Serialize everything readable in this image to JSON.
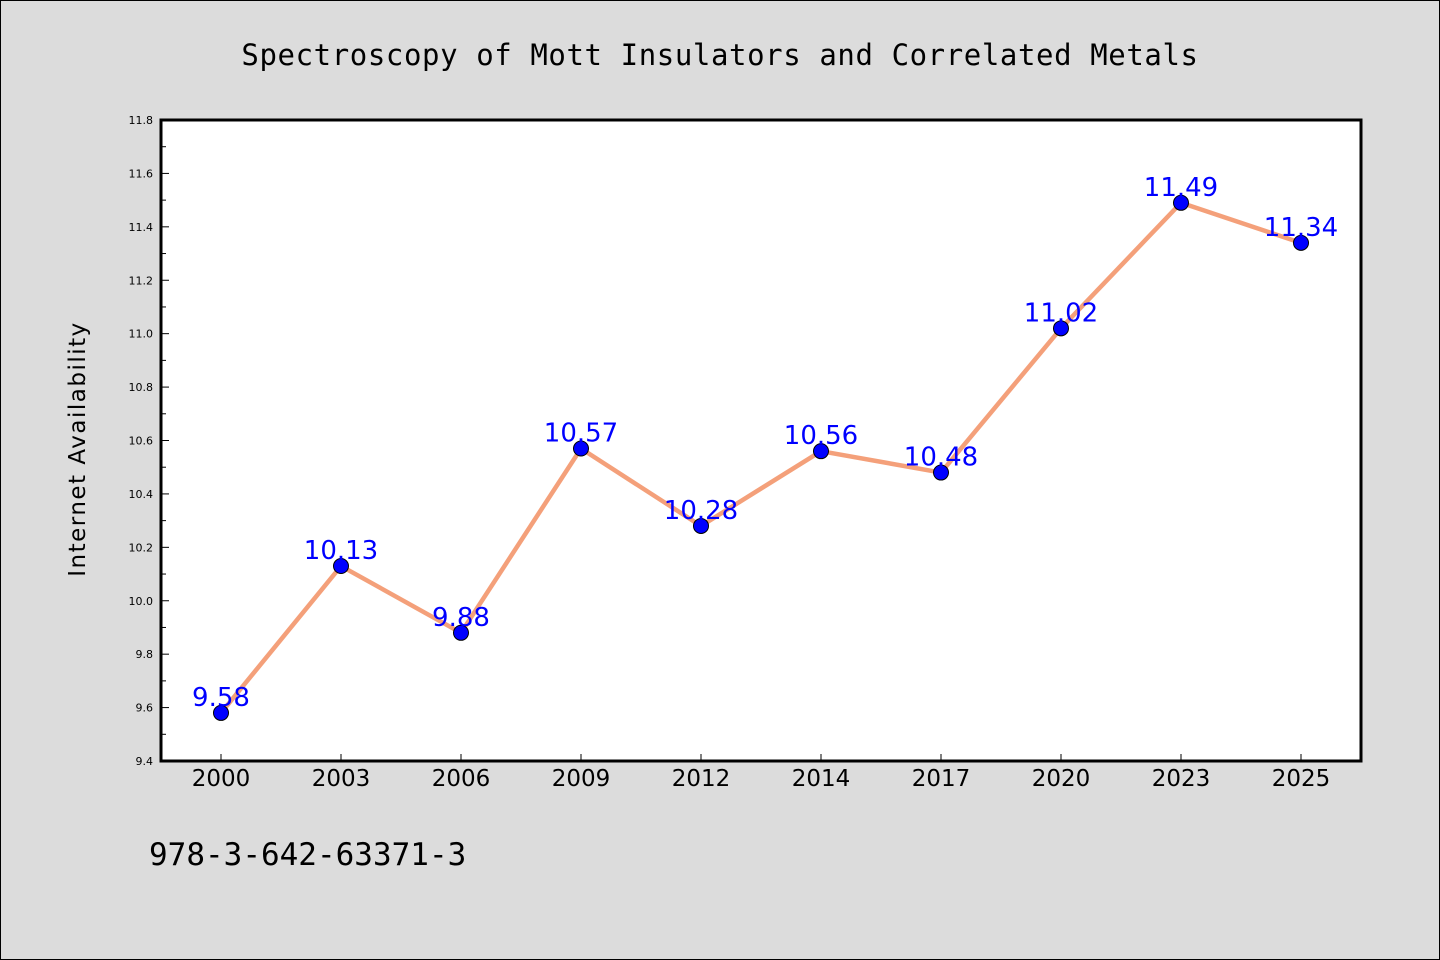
{
  "chart_data": {
    "type": "line",
    "title": "Spectroscopy of Mott Insulators and Correlated Metals",
    "xlabel": "",
    "ylabel": "Internet Availability",
    "categories": [
      "2000",
      "2003",
      "2006",
      "2009",
      "2012",
      "2014",
      "2017",
      "2020",
      "2023",
      "2025"
    ],
    "series": [
      {
        "values": [
          9.58,
          10.13,
          9.88,
          10.57,
          10.28,
          10.56,
          10.48,
          11.02,
          11.49,
          11.34
        ],
        "labels": [
          "9.58",
          "10.13",
          "9.88",
          "10.57",
          "10.28",
          "10.56",
          "10.48",
          "11.02",
          "11.49",
          "11.34"
        ],
        "line_color": "#f4a07a",
        "marker_color": "#0000ff"
      }
    ],
    "ylim": [
      9.4,
      11.8
    ],
    "yticks": [
      "9.4",
      "9.6",
      "9.8",
      "10.0",
      "10.2",
      "10.4",
      "10.6",
      "10.8",
      "11.0",
      "11.2",
      "11.4",
      "11.6",
      "11.8"
    ],
    "grid": false,
    "legend": "none"
  },
  "footer": {
    "isbn": "978-3-642-63371-3"
  },
  "colors": {
    "background": "#dcdcdc",
    "plot_area": "#ffffff",
    "line": "#f4a07a",
    "marker": "#0000ff",
    "data_label": "#0000ff"
  }
}
